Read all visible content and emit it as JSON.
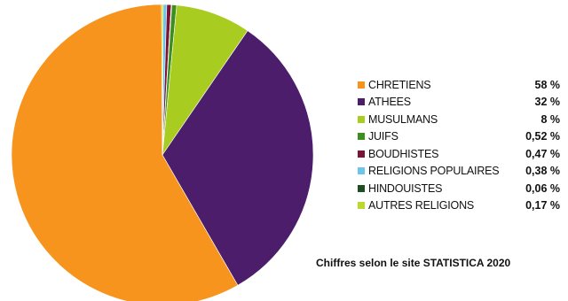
{
  "chart_data": {
    "type": "pie",
    "title": "",
    "categories": [
      "CHRETIENS",
      "ATHEES",
      "MUSULMANS",
      "JUIFS",
      "BOUDHISTES",
      "RELIGIONS POPULAIRES",
      "HINDOUISTES",
      "AUTRES RELIGIONS"
    ],
    "values": [
      58,
      32,
      8,
      0.52,
      0.47,
      0.38,
      0.06,
      0.17
    ],
    "value_labels": [
      "58 %",
      "32 %",
      "8 %",
      "0,52 %",
      "0,47 %",
      "0,38 %",
      "0,06 %",
      "0,17 %"
    ],
    "colors": [
      "#f7941d",
      "#4b1d6b",
      "#a8cc1f",
      "#3e8e1f",
      "#7b1536",
      "#6cc3ec",
      "#1f4d1f",
      "#bcd82c"
    ],
    "legend_position": "right",
    "slice_order_clockwise_from_top": [
      "RELIGIONS POPULAIRES",
      "BOUDHISTES",
      "HINDOUISTES",
      "JUIFS",
      "MUSULMANS",
      "ATHEES",
      "CHRETIENS",
      "AUTRES RELIGIONS"
    ]
  },
  "source_note": "Chiffres selon le site STATISTICA 2020"
}
